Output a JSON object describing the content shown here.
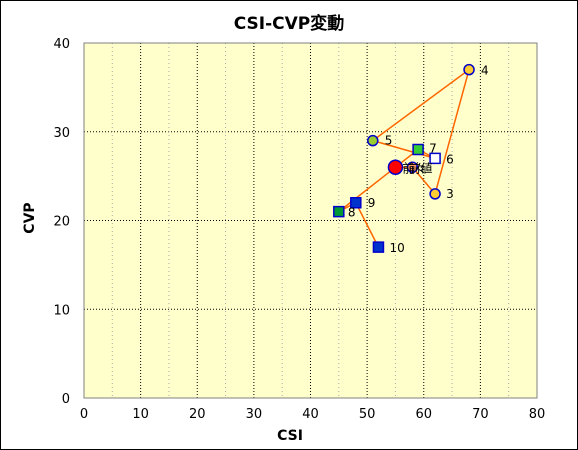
{
  "chart_data": {
    "type": "scatter",
    "title": "CSI-CVP変動",
    "xlabel": "CSI",
    "ylabel": "CVP",
    "xlim": [
      0,
      80
    ],
    "ylim": [
      0,
      40
    ],
    "xticks": [
      0,
      10,
      20,
      30,
      40,
      50,
      60,
      70,
      80
    ],
    "yticks": [
      0,
      10,
      20,
      30,
      40
    ],
    "grid": true,
    "background": "#ffffcc",
    "line_color": "#ff6600",
    "path_order": [
      "前値",
      "前々",
      "3",
      "4",
      "5",
      "6",
      "7",
      "8",
      "9",
      "10"
    ],
    "points": [
      {
        "label": "前値",
        "x": 55,
        "y": 26,
        "shape": "circle-large",
        "fill": "#ff0000",
        "stroke": "#0000cc"
      },
      {
        "label": "前々",
        "x": 58,
        "y": 26,
        "shape": "circle",
        "fill": "#ff9966",
        "stroke": "#0000cc"
      },
      {
        "label": "3",
        "x": 62,
        "y": 23,
        "shape": "circle",
        "fill": "#ffcc33",
        "stroke": "#0000cc"
      },
      {
        "label": "4",
        "x": 68,
        "y": 37,
        "shape": "circle",
        "fill": "#ffcc33",
        "stroke": "#0000cc"
      },
      {
        "label": "5",
        "x": 51,
        "y": 29,
        "shape": "circle",
        "fill": "#99cc33",
        "stroke": "#0000cc"
      },
      {
        "label": "6",
        "x": 62,
        "y": 27,
        "shape": "square",
        "fill": "#ffffff",
        "stroke": "#0000cc"
      },
      {
        "label": "7",
        "x": 59,
        "y": 28,
        "shape": "square",
        "fill": "#33cc33",
        "stroke": "#0000cc"
      },
      {
        "label": "8",
        "x": 45,
        "y": 21,
        "shape": "square",
        "fill": "#009933",
        "stroke": "#0000cc"
      },
      {
        "label": "9",
        "x": 48,
        "y": 22,
        "shape": "square",
        "fill": "#0033cc",
        "stroke": "#0000cc"
      },
      {
        "label": "10",
        "x": 52,
        "y": 17,
        "shape": "square",
        "fill": "#0033cc",
        "stroke": "#0000cc"
      }
    ]
  }
}
